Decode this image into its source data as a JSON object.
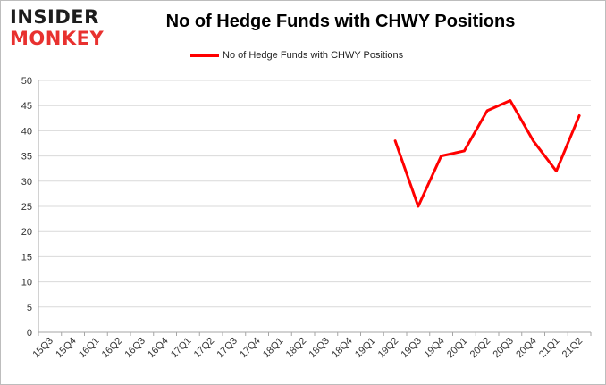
{
  "logo": {
    "line1": "INSIDER",
    "line2": "MONKEY"
  },
  "colors": {
    "line": "#ff0000",
    "grid": "#d9d9d9",
    "axis": "#a6a6a6",
    "logo_accent": "#e8312f"
  },
  "chart_data": {
    "type": "line",
    "title": "No of Hedge Funds with CHWY Positions",
    "xlabel": "",
    "ylabel": "",
    "categories": [
      "15Q3",
      "15Q4",
      "16Q1",
      "16Q2",
      "16Q3",
      "16Q4",
      "17Q1",
      "17Q2",
      "17Q3",
      "17Q4",
      "18Q1",
      "18Q2",
      "18Q3",
      "18Q4",
      "19Q1",
      "19Q2",
      "19Q3",
      "19Q4",
      "20Q1",
      "20Q2",
      "20Q3",
      "20Q4",
      "21Q1",
      "21Q2"
    ],
    "series": [
      {
        "name": "No of Hedge Funds with CHWY Positions",
        "values": [
          null,
          null,
          null,
          null,
          null,
          null,
          null,
          null,
          null,
          null,
          null,
          null,
          null,
          null,
          null,
          38,
          25,
          35,
          36,
          44,
          46,
          38,
          32,
          43
        ]
      }
    ],
    "ylim": [
      0,
      50
    ],
    "yticks": [
      0,
      5,
      10,
      15,
      20,
      25,
      30,
      35,
      40,
      45,
      50
    ],
    "grid": true,
    "legend": "top"
  }
}
